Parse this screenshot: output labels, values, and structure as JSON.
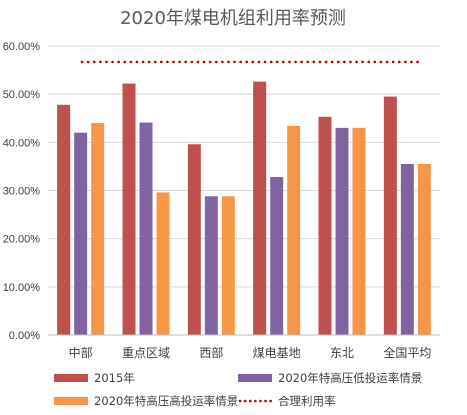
{
  "chart_data": {
    "type": "bar",
    "title": "2020年煤电机组利用率预测",
    "categories": [
      "中部",
      "重点区域",
      "西部",
      "煤电基地",
      "东北",
      "全国平均"
    ],
    "series": [
      {
        "name": "2015年",
        "color": "#C0504D",
        "values": [
          47.8,
          52.2,
          39.6,
          52.6,
          45.3,
          49.5
        ]
      },
      {
        "name": "2020年特高压低投运率情景",
        "color": "#8064A2",
        "values": [
          42.0,
          44.1,
          28.8,
          32.8,
          43.0,
          35.5
        ]
      },
      {
        "name": "2020年特高压高投运率情景",
        "color": "#F79646",
        "values": [
          44.0,
          29.6,
          28.8,
          43.4,
          43.0,
          35.5
        ]
      }
    ],
    "reference_line": {
      "name": "合理利用率",
      "value": 56.7,
      "color": "#C00000",
      "style": "dotted"
    },
    "ylim": [
      0,
      60
    ],
    "yticks": [
      "0.00%",
      "10.00%",
      "20.00%",
      "30.00%",
      "40.00%",
      "50.00%",
      "60.00%"
    ],
    "ytick_values": [
      0,
      10,
      20,
      30,
      40,
      50,
      60
    ],
    "grid": true,
    "legend_position": "bottom"
  }
}
